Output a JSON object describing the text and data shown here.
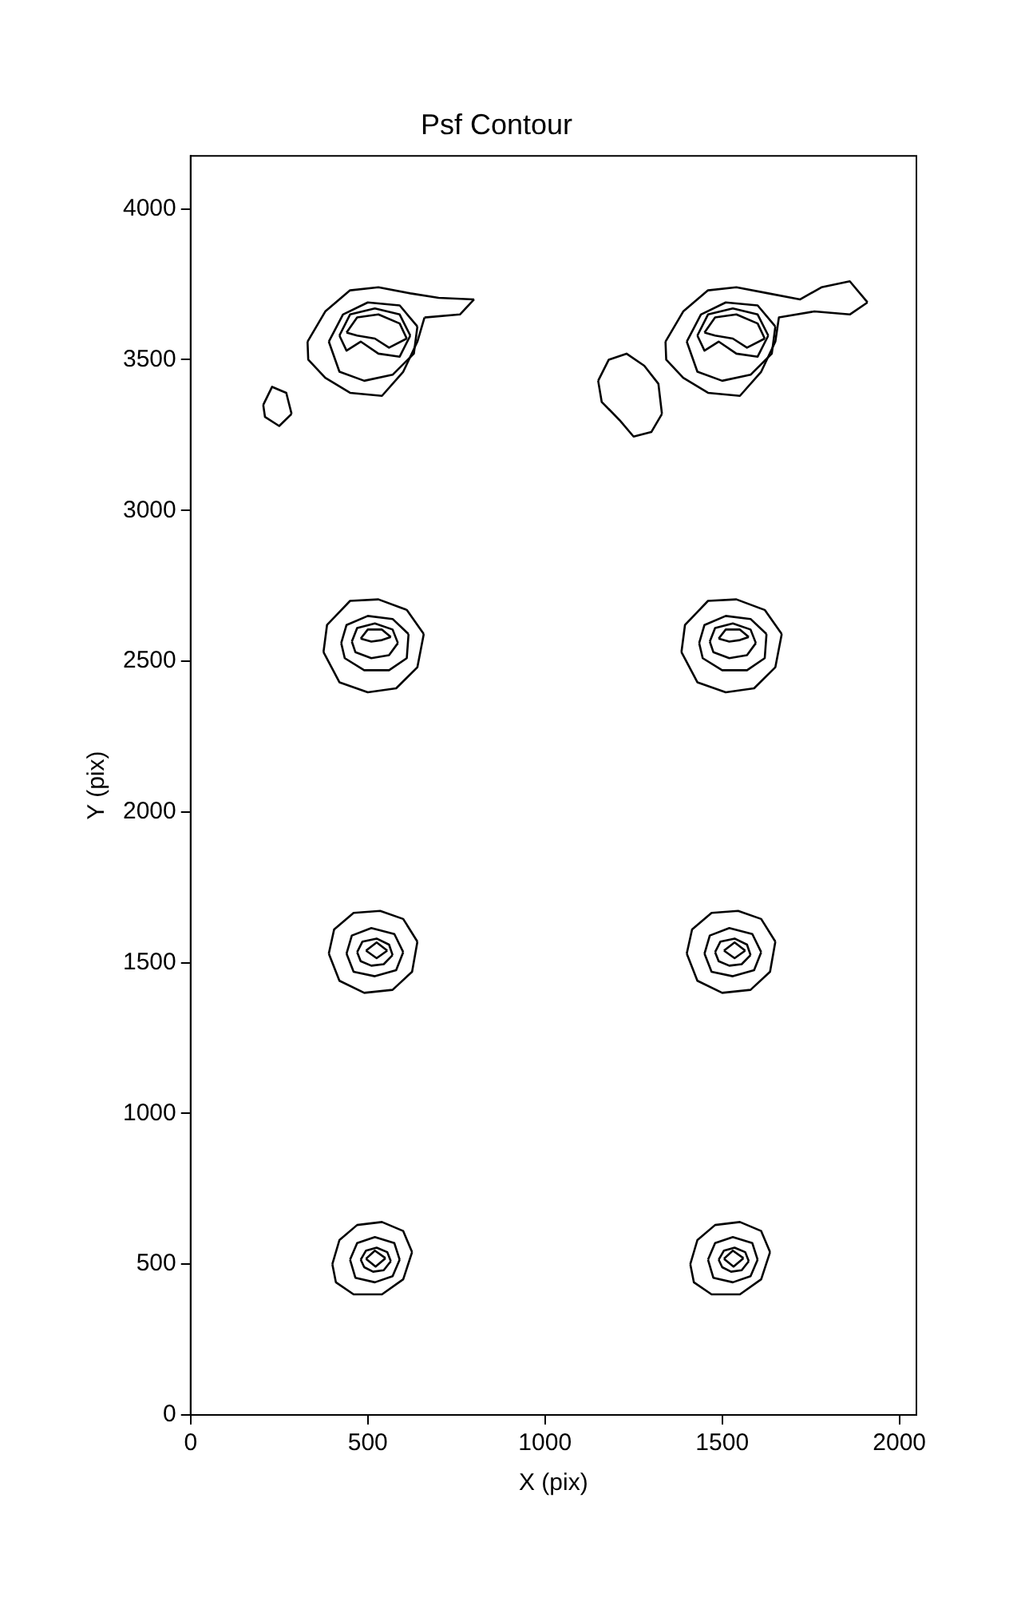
{
  "chart_data": {
    "type": "line",
    "title": "Psf Contour",
    "xlabel": "X (pix)",
    "ylabel": "Y (pix)",
    "xlim": [
      0,
      2048
    ],
    "xticks": [
      0,
      500,
      1000,
      1500,
      2000
    ],
    "ylim": [
      0,
      4176
    ],
    "yticks": [
      0,
      500,
      1000,
      1500,
      2000,
      2500,
      3000,
      3500,
      4000
    ],
    "marker": "none",
    "line_style": "solid",
    "legend": false,
    "series": [
      {
        "color": "#000000",
        "x": [
          400,
          420,
          470,
          540,
          600,
          625
        ],
        "values": [
          500,
          580,
          630,
          640,
          610,
          540
        ]
      },
      {
        "color": "#000000",
        "x": [
          400,
          410,
          460,
          540,
          600,
          625
        ],
        "values": [
          500,
          440,
          400,
          400,
          450,
          540
        ]
      },
      {
        "color": "#000000",
        "x": [
          450,
          470,
          520,
          575,
          590
        ],
        "values": [
          515,
          570,
          590,
          570,
          515
        ]
      },
      {
        "color": "#000000",
        "x": [
          450,
          465,
          520,
          570,
          590
        ],
        "values": [
          515,
          455,
          440,
          460,
          515
        ]
      },
      {
        "color": "#000000",
        "x": [
          480,
          495,
          525,
          555,
          565
        ],
        "values": [
          515,
          545,
          555,
          540,
          510
        ]
      },
      {
        "color": "#000000",
        "x": [
          480,
          490,
          515,
          545,
          565
        ],
        "values": [
          515,
          490,
          475,
          480,
          510
        ]
      },
      {
        "color": "#000000",
        "x": [
          495,
          520,
          550
        ],
        "values": [
          518,
          545,
          520
        ]
      },
      {
        "color": "#000000",
        "x": [
          495,
          522,
          550
        ],
        "values": [
          518,
          492,
          520
        ]
      },
      {
        "color": "#000000",
        "x": [
          1410,
          1430,
          1480,
          1550,
          1610,
          1635
        ],
        "values": [
          500,
          580,
          630,
          640,
          610,
          540
        ]
      },
      {
        "color": "#000000",
        "x": [
          1410,
          1420,
          1470,
          1550,
          1610,
          1635
        ],
        "values": [
          500,
          440,
          400,
          400,
          450,
          540
        ]
      },
      {
        "color": "#000000",
        "x": [
          1460,
          1480,
          1530,
          1585,
          1600
        ],
        "values": [
          515,
          570,
          590,
          570,
          515
        ]
      },
      {
        "color": "#000000",
        "x": [
          1460,
          1475,
          1530,
          1580,
          1600
        ],
        "values": [
          515,
          455,
          440,
          460,
          515
        ]
      },
      {
        "color": "#000000",
        "x": [
          1490,
          1505,
          1535,
          1565,
          1575
        ],
        "values": [
          515,
          545,
          555,
          540,
          510
        ]
      },
      {
        "color": "#000000",
        "x": [
          1490,
          1500,
          1525,
          1555,
          1575
        ],
        "values": [
          515,
          490,
          475,
          480,
          510
        ]
      },
      {
        "color": "#000000",
        "x": [
          1505,
          1530,
          1560
        ],
        "values": [
          518,
          545,
          520
        ]
      },
      {
        "color": "#000000",
        "x": [
          1505,
          1532,
          1560
        ],
        "values": [
          518,
          492,
          520
        ]
      },
      {
        "color": "#000000",
        "x": [
          390,
          405,
          460,
          535,
          600,
          640
        ],
        "values": [
          1530,
          1610,
          1665,
          1672,
          1645,
          1570
        ]
      },
      {
        "color": "#000000",
        "x": [
          390,
          420,
          490,
          570,
          625,
          640
        ],
        "values": [
          1530,
          1440,
          1400,
          1410,
          1470,
          1570
        ]
      },
      {
        "color": "#000000",
        "x": [
          440,
          455,
          510,
          575,
          600
        ],
        "values": [
          1530,
          1590,
          1615,
          1595,
          1535
        ]
      },
      {
        "color": "#000000",
        "x": [
          440,
          460,
          520,
          580,
          600
        ],
        "values": [
          1530,
          1470,
          1455,
          1475,
          1535
        ]
      },
      {
        "color": "#000000",
        "x": [
          470,
          485,
          525,
          560,
          570
        ],
        "values": [
          1535,
          1570,
          1580,
          1560,
          1525
        ]
      },
      {
        "color": "#000000",
        "x": [
          470,
          480,
          510,
          545,
          570
        ],
        "values": [
          1535,
          1505,
          1490,
          1495,
          1525
        ]
      },
      {
        "color": "#000000",
        "x": [
          495,
          525,
          555
        ],
        "values": [
          1540,
          1567,
          1540
        ]
      },
      {
        "color": "#000000",
        "x": [
          495,
          525,
          555
        ],
        "values": [
          1540,
          1515,
          1540
        ]
      },
      {
        "color": "#000000",
        "x": [
          1400,
          1415,
          1470,
          1545,
          1610,
          1650
        ],
        "values": [
          1530,
          1610,
          1665,
          1672,
          1645,
          1570
        ]
      },
      {
        "color": "#000000",
        "x": [
          1400,
          1430,
          1500,
          1580,
          1635,
          1650
        ],
        "values": [
          1530,
          1440,
          1400,
          1410,
          1470,
          1570
        ]
      },
      {
        "color": "#000000",
        "x": [
          1450,
          1465,
          1520,
          1585,
          1610
        ],
        "values": [
          1530,
          1590,
          1615,
          1595,
          1535
        ]
      },
      {
        "color": "#000000",
        "x": [
          1450,
          1470,
          1530,
          1590,
          1610
        ],
        "values": [
          1530,
          1470,
          1455,
          1475,
          1535
        ]
      },
      {
        "color": "#000000",
        "x": [
          1480,
          1495,
          1535,
          1570,
          1580
        ],
        "values": [
          1535,
          1570,
          1580,
          1560,
          1525
        ]
      },
      {
        "color": "#000000",
        "x": [
          1480,
          1490,
          1520,
          1555,
          1580
        ],
        "values": [
          1535,
          1505,
          1490,
          1495,
          1525
        ]
      },
      {
        "color": "#000000",
        "x": [
          1505,
          1535,
          1565
        ],
        "values": [
          1540,
          1567,
          1540
        ]
      },
      {
        "color": "#000000",
        "x": [
          1505,
          1535,
          1565
        ],
        "values": [
          1540,
          1515,
          1540
        ]
      },
      {
        "color": "#000000",
        "x": [
          375,
          385,
          450,
          530,
          610,
          658
        ],
        "values": [
          2530,
          2620,
          2700,
          2705,
          2670,
          2590
        ]
      },
      {
        "color": "#000000",
        "x": [
          375,
          420,
          500,
          580,
          640,
          658
        ],
        "values": [
          2530,
          2430,
          2397,
          2410,
          2480,
          2590
        ]
      },
      {
        "color": "#000000",
        "x": [
          425,
          440,
          500,
          570,
          615
        ],
        "values": [
          2560,
          2620,
          2650,
          2640,
          2590
        ]
      },
      {
        "color": "#000000",
        "x": [
          425,
          435,
          490,
          560,
          610,
          615
        ],
        "values": [
          2560,
          2510,
          2470,
          2470,
          2510,
          2590
        ]
      },
      {
        "color": "#000000",
        "x": [
          455,
          470,
          520,
          570,
          585
        ],
        "values": [
          2565,
          2610,
          2625,
          2605,
          2560
        ]
      },
      {
        "color": "#000000",
        "x": [
          455,
          465,
          510,
          560,
          585
        ],
        "values": [
          2565,
          2530,
          2510,
          2520,
          2560
        ]
      },
      {
        "color": "#000000",
        "x": [
          480,
          500,
          540,
          565
        ],
        "values": [
          2575,
          2605,
          2605,
          2580
        ]
      },
      {
        "color": "#000000",
        "x": [
          480,
          510,
          540,
          565
        ],
        "values": [
          2575,
          2565,
          2570,
          2580
        ]
      },
      {
        "color": "#000000",
        "x": [
          1385,
          1395,
          1460,
          1540,
          1620,
          1668
        ],
        "values": [
          2530,
          2620,
          2700,
          2705,
          2670,
          2590
        ]
      },
      {
        "color": "#000000",
        "x": [
          1385,
          1430,
          1510,
          1590,
          1650,
          1668
        ],
        "values": [
          2530,
          2430,
          2397,
          2410,
          2480,
          2590
        ]
      },
      {
        "color": "#000000",
        "x": [
          1435,
          1450,
          1510,
          1580,
          1625
        ],
        "values": [
          2560,
          2620,
          2650,
          2640,
          2590
        ]
      },
      {
        "color": "#000000",
        "x": [
          1435,
          1445,
          1500,
          1570,
          1620,
          1625
        ],
        "values": [
          2560,
          2510,
          2470,
          2470,
          2510,
          2590
        ]
      },
      {
        "color": "#000000",
        "x": [
          1465,
          1480,
          1530,
          1580,
          1595
        ],
        "values": [
          2565,
          2610,
          2625,
          2605,
          2560
        ]
      },
      {
        "color": "#000000",
        "x": [
          1465,
          1475,
          1520,
          1570,
          1595
        ],
        "values": [
          2565,
          2530,
          2510,
          2520,
          2560
        ]
      },
      {
        "color": "#000000",
        "x": [
          1490,
          1510,
          1550,
          1575
        ],
        "values": [
          2575,
          2605,
          2605,
          2580
        ]
      },
      {
        "color": "#000000",
        "x": [
          1490,
          1520,
          1550,
          1575
        ],
        "values": [
          2575,
          2565,
          2570,
          2580
        ]
      },
      {
        "color": "#000000",
        "x": [
          330,
          380,
          450,
          530,
          620,
          700,
          800
        ],
        "values": [
          3560,
          3660,
          3730,
          3740,
          3720,
          3705,
          3700
        ]
      },
      {
        "color": "#000000",
        "x": [
          330,
          332,
          380,
          450,
          540,
          600,
          640,
          660
        ],
        "values": [
          3560,
          3500,
          3440,
          3390,
          3380,
          3460,
          3560,
          3640
        ]
      },
      {
        "color": "#000000",
        "x": [
          660,
          760,
          800
        ],
        "values": [
          3640,
          3650,
          3700
        ]
      },
      {
        "color": "#000000",
        "x": [
          390,
          430,
          500,
          590,
          640
        ],
        "values": [
          3560,
          3650,
          3690,
          3680,
          3610
        ]
      },
      {
        "color": "#000000",
        "x": [
          390,
          420,
          490,
          570,
          630,
          640
        ],
        "values": [
          3560,
          3460,
          3430,
          3450,
          3520,
          3610
        ]
      },
      {
        "color": "#000000",
        "x": [
          420,
          450,
          520,
          590,
          620
        ],
        "values": [
          3580,
          3650,
          3670,
          3650,
          3580
        ]
      },
      {
        "color": "#000000",
        "x": [
          420,
          440,
          480,
          530,
          590,
          620
        ],
        "values": [
          3580,
          3530,
          3560,
          3520,
          3510,
          3580
        ]
      },
      {
        "color": "#000000",
        "x": [
          440,
          470,
          530,
          590,
          610
        ],
        "values": [
          3590,
          3640,
          3650,
          3620,
          3570
        ]
      },
      {
        "color": "#000000",
        "x": [
          440,
          470,
          520,
          560,
          610
        ],
        "values": [
          3590,
          3580,
          3570,
          3540,
          3570
        ]
      },
      {
        "color": "#000000",
        "x": [
          205,
          230,
          270,
          285
        ],
        "values": [
          3350,
          3410,
          3390,
          3320
        ]
      },
      {
        "color": "#000000",
        "x": [
          205,
          210,
          250,
          285
        ],
        "values": [
          3350,
          3310,
          3280,
          3320
        ]
      },
      {
        "color": "#000000",
        "x": [
          1340,
          1390,
          1460,
          1540,
          1630,
          1720,
          1780,
          1860,
          1910
        ],
        "values": [
          3560,
          3660,
          3730,
          3740,
          3720,
          3700,
          3740,
          3760,
          3690
        ]
      },
      {
        "color": "#000000",
        "x": [
          1340,
          1342,
          1390,
          1460,
          1550,
          1610,
          1650,
          1660,
          1760,
          1860,
          1910
        ],
        "values": [
          3560,
          3500,
          3440,
          3390,
          3380,
          3460,
          3560,
          3640,
          3660,
          3650,
          3690
        ]
      },
      {
        "color": "#000000",
        "x": [
          1400,
          1440,
          1510,
          1600,
          1650
        ],
        "values": [
          3560,
          3650,
          3690,
          3680,
          3610
        ]
      },
      {
        "color": "#000000",
        "x": [
          1400,
          1430,
          1500,
          1580,
          1640,
          1650
        ],
        "values": [
          3560,
          3460,
          3430,
          3450,
          3520,
          3610
        ]
      },
      {
        "color": "#000000",
        "x": [
          1430,
          1460,
          1530,
          1600,
          1630
        ],
        "values": [
          3580,
          3650,
          3670,
          3650,
          3580
        ]
      },
      {
        "color": "#000000",
        "x": [
          1430,
          1450,
          1490,
          1540,
          1600,
          1630
        ],
        "values": [
          3580,
          3530,
          3560,
          3520,
          3510,
          3580
        ]
      },
      {
        "color": "#000000",
        "x": [
          1450,
          1480,
          1540,
          1600,
          1620
        ],
        "values": [
          3590,
          3640,
          3650,
          3620,
          3570
        ]
      },
      {
        "color": "#000000",
        "x": [
          1450,
          1480,
          1530,
          1570,
          1620
        ],
        "values": [
          3590,
          3580,
          3570,
          3540,
          3570
        ]
      },
      {
        "color": "#000000",
        "x": [
          1150,
          1180,
          1230,
          1280,
          1320,
          1330
        ],
        "values": [
          3430,
          3500,
          3520,
          3480,
          3420,
          3320
        ]
      },
      {
        "color": "#000000",
        "x": [
          1150,
          1160,
          1210,
          1250,
          1300,
          1330
        ],
        "values": [
          3430,
          3360,
          3300,
          3245,
          3260,
          3320
        ]
      }
    ]
  }
}
